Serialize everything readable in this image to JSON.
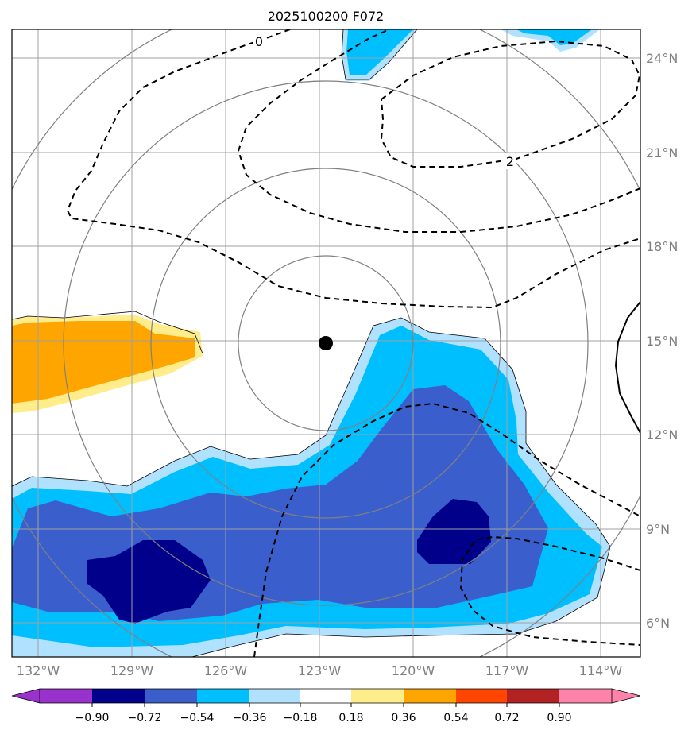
{
  "title": "2025100200 F072",
  "center_marker": {
    "lon": -122.8,
    "lat": 15.0
  },
  "x_ticks": [
    {
      "lon": -132,
      "label": "132°W"
    },
    {
      "lon": -129,
      "label": "129°W"
    },
    {
      "lon": -126,
      "label": "126°W"
    },
    {
      "lon": -123,
      "label": "123°W"
    },
    {
      "lon": -120,
      "label": "120°W"
    },
    {
      "lon": -117,
      "label": "117°W"
    },
    {
      "lon": -114,
      "label": "114°W"
    }
  ],
  "y_ticks": [
    {
      "lat": 24,
      "label": "24°N"
    },
    {
      "lat": 21,
      "label": "21°N"
    },
    {
      "lat": 18,
      "label": "18°N"
    },
    {
      "lat": 15,
      "label": "15°N"
    },
    {
      "lat": 12,
      "label": "12°N"
    },
    {
      "lat": 9,
      "label": "9°N"
    },
    {
      "lat": 6,
      "label": "6°N"
    }
  ],
  "contour_labels": [
    "0",
    "2"
  ],
  "colorbar": {
    "levels": [
      "−0.90",
      "−0.72",
      "−0.54",
      "−0.36",
      "−0.18",
      "0.18",
      "0.36",
      "0.54",
      "0.72",
      "0.90"
    ],
    "colors": [
      "#9932CC",
      "#00008B",
      "#3A5FCD",
      "#00BFFF",
      "#B0E2FF",
      "#FFFFFF",
      "#FFEC8B",
      "#FFA500",
      "#FF4500",
      "#B22222",
      "#FF82AB"
    ]
  }
}
